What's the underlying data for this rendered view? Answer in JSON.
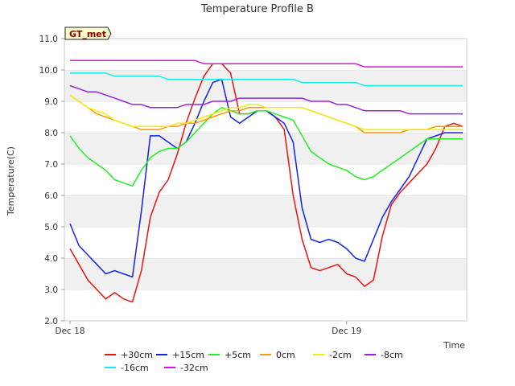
{
  "chart_data": {
    "type": "line",
    "title": "Temperature Profile B",
    "xlabel": "Time",
    "ylabel": "Temperature(C)",
    "badge": "GT_met",
    "ylim": [
      2.0,
      11.0
    ],
    "xlim": [
      0,
      44
    ],
    "yticks": [
      "2.0",
      "3.0",
      "4.0",
      "5.0",
      "6.0",
      "7.0",
      "8.0",
      "9.0",
      "10.0",
      "11.0"
    ],
    "xticks": [
      {
        "pos": 0,
        "label": "Dec 18"
      },
      {
        "pos": 31,
        "label": "Dec 19"
      }
    ],
    "x": [
      0,
      1,
      2,
      3,
      4,
      5,
      6,
      7,
      8,
      9,
      10,
      11,
      12,
      13,
      14,
      15,
      16,
      17,
      18,
      19,
      20,
      21,
      22,
      23,
      24,
      25,
      26,
      27,
      28,
      29,
      30,
      31,
      32,
      33,
      34,
      35,
      36,
      37,
      38,
      39,
      40,
      41,
      42,
      43,
      44
    ],
    "series": [
      {
        "name": "+30cm",
        "color": "#ee1111",
        "values": [
          4.3,
          3.8,
          3.3,
          3.0,
          2.7,
          2.9,
          2.7,
          2.6,
          3.6,
          5.3,
          6.1,
          6.5,
          7.3,
          8.3,
          9.1,
          9.8,
          10.2,
          10.2,
          9.9,
          8.6,
          8.6,
          8.7,
          8.7,
          8.5,
          8.1,
          6.0,
          4.6,
          3.7,
          3.6,
          3.7,
          3.8,
          3.5,
          3.4,
          3.1,
          3.3,
          4.7,
          5.7,
          6.1,
          6.4,
          6.7,
          7.0,
          7.5,
          8.2,
          8.3,
          8.2
        ]
      },
      {
        "name": "+15cm",
        "color": "#1122ee",
        "values": [
          5.1,
          4.4,
          4.1,
          3.8,
          3.5,
          3.6,
          3.5,
          3.4,
          5.5,
          7.9,
          7.9,
          7.7,
          7.5,
          7.7,
          8.3,
          9.0,
          9.6,
          9.7,
          8.5,
          8.3,
          8.5,
          8.7,
          8.7,
          8.5,
          8.3,
          7.7,
          5.6,
          4.6,
          4.5,
          4.6,
          4.5,
          4.3,
          4.0,
          3.9,
          4.6,
          5.3,
          5.8,
          6.2,
          6.6,
          7.2,
          7.8,
          7.9,
          8.0,
          8.0,
          8.0
        ]
      },
      {
        "name": "+5cm",
        "color": "#22ee22",
        "values": [
          7.9,
          7.5,
          7.2,
          7.0,
          6.8,
          6.5,
          6.4,
          6.3,
          6.8,
          7.2,
          7.4,
          7.5,
          7.5,
          7.7,
          8.0,
          8.3,
          8.6,
          8.8,
          8.7,
          8.6,
          8.6,
          8.7,
          8.7,
          8.6,
          8.5,
          8.4,
          7.9,
          7.4,
          7.2,
          7.0,
          6.9,
          6.8,
          6.6,
          6.5,
          6.6,
          6.8,
          7.0,
          7.2,
          7.4,
          7.6,
          7.8,
          7.8,
          7.8,
          7.8,
          7.8
        ]
      },
      {
        "name": "0cm",
        "color": "#ff9900",
        "values": [
          9.2,
          9.0,
          8.8,
          8.6,
          8.5,
          8.4,
          8.3,
          8.2,
          8.1,
          8.1,
          8.1,
          8.2,
          8.2,
          8.3,
          8.3,
          8.4,
          8.5,
          8.6,
          8.7,
          8.7,
          8.8,
          8.8,
          8.8,
          8.8,
          8.8,
          8.8,
          8.8,
          8.7,
          8.6,
          8.5,
          8.4,
          8.3,
          8.2,
          8.0,
          8.0,
          8.0,
          8.0,
          8.0,
          8.1,
          8.1,
          8.1,
          8.2,
          8.2,
          8.2,
          8.2
        ]
      },
      {
        "name": "-2cm",
        "color": "#eeee11",
        "values": [
          9.2,
          9.0,
          8.8,
          8.7,
          8.6,
          8.4,
          8.3,
          8.2,
          8.2,
          8.2,
          8.2,
          8.2,
          8.3,
          8.3,
          8.4,
          8.5,
          8.6,
          8.7,
          8.8,
          8.8,
          8.9,
          8.9,
          8.8,
          8.8,
          8.8,
          8.8,
          8.8,
          8.7,
          8.6,
          8.5,
          8.4,
          8.3,
          8.2,
          8.1,
          8.1,
          8.1,
          8.1,
          8.1,
          8.1,
          8.1,
          8.1,
          8.1,
          8.1,
          8.1,
          8.1
        ]
      },
      {
        "name": "-8cm",
        "color": "#9922dd",
        "values": [
          9.5,
          9.4,
          9.3,
          9.3,
          9.2,
          9.1,
          9.0,
          8.9,
          8.9,
          8.8,
          8.8,
          8.8,
          8.8,
          8.9,
          8.9,
          8.9,
          9.0,
          9.0,
          9.0,
          9.1,
          9.1,
          9.1,
          9.1,
          9.1,
          9.1,
          9.1,
          9.1,
          9.0,
          9.0,
          9.0,
          8.9,
          8.9,
          8.8,
          8.7,
          8.7,
          8.7,
          8.7,
          8.7,
          8.6,
          8.6,
          8.6,
          8.6,
          8.6,
          8.6,
          8.6
        ]
      },
      {
        "name": "-16cm",
        "color": "#11eeee",
        "values": [
          9.9,
          9.9,
          9.9,
          9.9,
          9.9,
          9.8,
          9.8,
          9.8,
          9.8,
          9.8,
          9.8,
          9.7,
          9.7,
          9.7,
          9.7,
          9.7,
          9.7,
          9.7,
          9.7,
          9.7,
          9.7,
          9.7,
          9.7,
          9.7,
          9.7,
          9.7,
          9.6,
          9.6,
          9.6,
          9.6,
          9.6,
          9.6,
          9.6,
          9.5,
          9.5,
          9.5,
          9.5,
          9.5,
          9.5,
          9.5,
          9.5,
          9.5,
          9.5,
          9.5,
          9.5
        ]
      },
      {
        "name": "-32cm",
        "color": "#dd11dd",
        "values": [
          10.3,
          10.3,
          10.3,
          10.3,
          10.3,
          10.3,
          10.3,
          10.3,
          10.3,
          10.3,
          10.3,
          10.3,
          10.3,
          10.3,
          10.3,
          10.2,
          10.2,
          10.2,
          10.2,
          10.2,
          10.2,
          10.2,
          10.2,
          10.2,
          10.2,
          10.2,
          10.2,
          10.2,
          10.2,
          10.2,
          10.2,
          10.2,
          10.2,
          10.1,
          10.1,
          10.1,
          10.1,
          10.1,
          10.1,
          10.1,
          10.1,
          10.1,
          10.1,
          10.1,
          10.1
        ]
      }
    ],
    "grid": "horizontal",
    "legend": "bottom"
  }
}
